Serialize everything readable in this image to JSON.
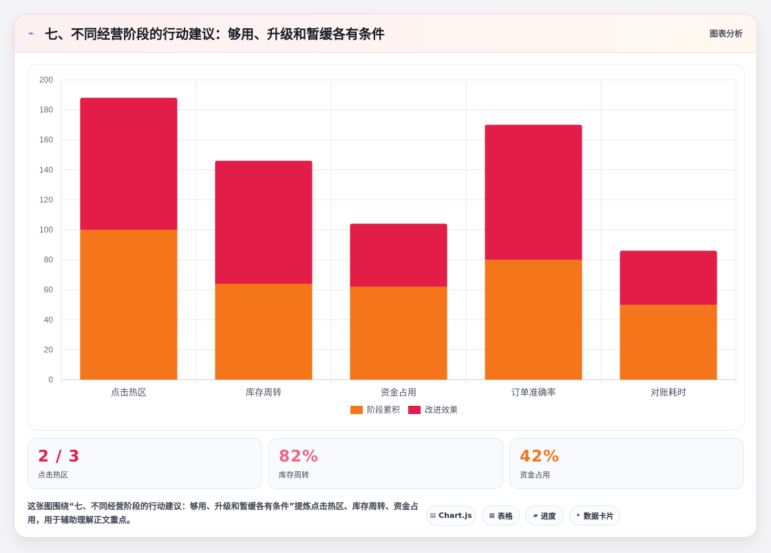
{
  "header": {
    "icon": "bolt-icon",
    "title": "七、不同经营阶段的行动建议：够用、升级和暂缓各有条件",
    "tag": "图表分析"
  },
  "chart_data": {
    "type": "bar",
    "stacked": true,
    "categories": [
      "点击热区",
      "库存周转",
      "资金占用",
      "订单准确率",
      "对账耗时"
    ],
    "series": [
      {
        "name": "阶段累积",
        "color": "#f5751a",
        "values": [
          100,
          64,
          62,
          80,
          50
        ]
      },
      {
        "name": "改进效果",
        "color": "#e11d48",
        "values": [
          88,
          82,
          42,
          90,
          36
        ]
      }
    ],
    "ylim": [
      0,
      200
    ],
    "yticks": [
      0,
      20,
      40,
      60,
      80,
      100,
      120,
      140,
      160,
      180,
      200
    ],
    "grid": true,
    "legend_position": "bottom"
  },
  "stats": [
    {
      "value": "2 / 3",
      "label": "点击热区",
      "color": "#e11d48"
    },
    {
      "value": "82%",
      "label": "库存周转",
      "color": "#f0667e"
    },
    {
      "value": "42%",
      "label": "资金占用",
      "color": "#f5751a"
    }
  ],
  "note": "这张图围绕“七、不同经营阶段的行动建议：够用、升级和暂缓各有条件”提炼点击热区、库存周转、资金占用，用于辅助理解正文重点。",
  "chips": [
    {
      "icon": "chart-icon",
      "glyph": "▤",
      "label": "Chart.js"
    },
    {
      "icon": "table-icon",
      "glyph": "▦",
      "label": "表格"
    },
    {
      "icon": "progress-icon",
      "glyph": "▰",
      "label": "进度"
    },
    {
      "icon": "sparkle-icon",
      "glyph": "✦",
      "label": "数据卡片"
    }
  ]
}
